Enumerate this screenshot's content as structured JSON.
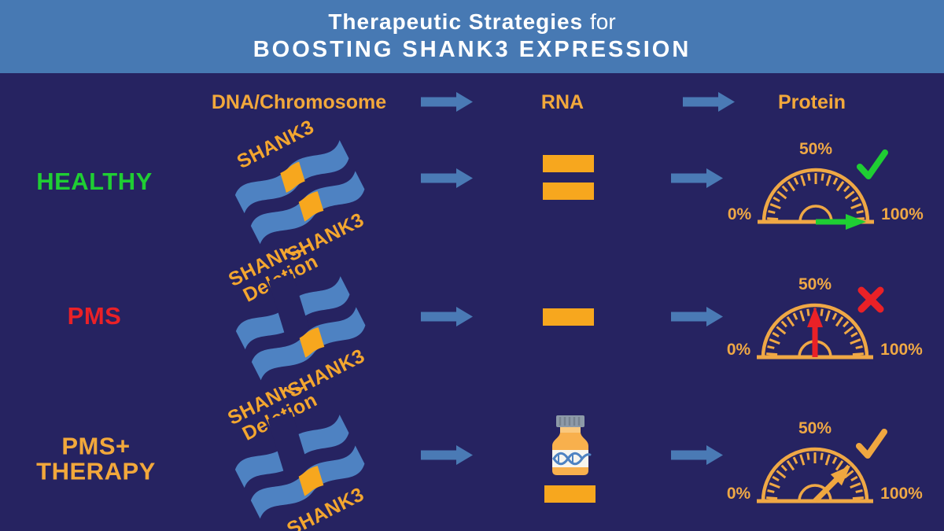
{
  "colors": {
    "background": "#262361",
    "banner_blue": "#4779B3",
    "orange": "#F7A71E",
    "orange_soft": "#EFA845",
    "ribbon_blue": "#4E82C2",
    "arrow_blue": "#4A7AB5",
    "green": "#1FCE33",
    "red": "#EA2127",
    "bottle_body": "#F8B04D",
    "bottle_neck": "#FAC87D",
    "cap_gray": "#8D9AA8"
  },
  "banner": {
    "line1_bold": "Therapeutic Strategies",
    "line1_regular": "for",
    "line2": "BOOSTING SHANK3 EXPRESSION"
  },
  "columns": [
    {
      "label": "DNA/Chromosome"
    },
    {
      "label": "RNA"
    },
    {
      "label": "Protein"
    }
  ],
  "rows": [
    {
      "label": "HEALTHY",
      "label_color": "#1FCE33",
      "chromosome": {
        "type": "normal",
        "top_label_line1": "",
        "top_label_line2": "SHANK3",
        "bottom_label": "SHANK3"
      },
      "rna": {
        "bar_count": 2,
        "has_therapy_bottle": false
      },
      "gauge": {
        "value_pct": 100,
        "needle_color": "#1FCE33",
        "mark": "check",
        "mark_color": "#1FCE33",
        "label_left": "0%",
        "label_top": "50%",
        "label_right": "100%"
      }
    },
    {
      "label": "PMS",
      "label_color": "#EA2127",
      "chromosome": {
        "type": "deletion",
        "top_label_line1": "SHANK3",
        "top_label_line2": "Deletion",
        "bottom_label": "SHANK3"
      },
      "rna": {
        "bar_count": 1,
        "has_therapy_bottle": false
      },
      "gauge": {
        "value_pct": 50,
        "needle_color": "#EA2127",
        "mark": "cross",
        "mark_color": "#EA2127",
        "label_left": "0%",
        "label_top": "50%",
        "label_right": "100%"
      }
    },
    {
      "label": "PMS+\nTHERAPY",
      "label_color": "#F2A83B",
      "chromosome": {
        "type": "deletion",
        "top_label_line1": "SHANK3",
        "top_label_line2": "Deletion",
        "bottom_label": "SHANK3"
      },
      "rna": {
        "bar_count": 1,
        "has_therapy_bottle": true
      },
      "gauge": {
        "value_pct": 75,
        "needle_color": "#F0A740",
        "mark": "check",
        "mark_color": "#F0A740",
        "label_left": "0%",
        "label_top": "50%",
        "label_right": "100%"
      }
    }
  ]
}
